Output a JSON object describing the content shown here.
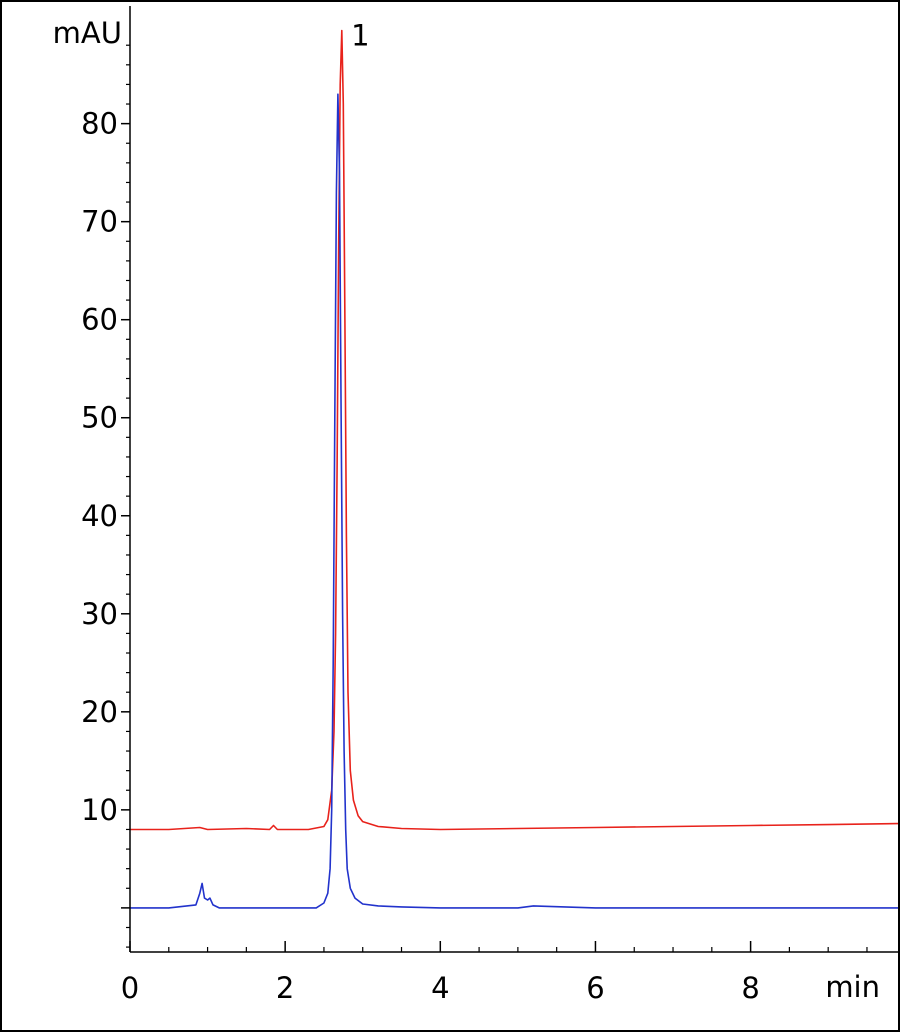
{
  "chart_data": {
    "type": "line",
    "title": "",
    "xlabel": "min",
    "ylabel": "mAU",
    "xlim": [
      0,
      9.9
    ],
    "ylim": [
      -4.5,
      92
    ],
    "grid": false,
    "x_ticks": [
      0,
      2,
      4,
      6,
      8
    ],
    "x_tick_labels": [
      "0",
      "2",
      "4",
      "6",
      "8"
    ],
    "y_ticks": [
      10,
      20,
      30,
      40,
      50,
      60,
      70,
      80
    ],
    "y_tick_labels": [
      "10",
      "20",
      "30",
      "40",
      "50",
      "60",
      "70",
      "80"
    ],
    "y_unlabeled_ticks": [
      0
    ],
    "annotations": [
      {
        "text": "1",
        "x": 2.85,
        "y": 89
      }
    ],
    "series": [
      {
        "color": "#e8221b",
        "x": [
          0,
          0.5,
          0.9,
          1.0,
          1.5,
          1.8,
          1.85,
          1.9,
          2.3,
          2.5,
          2.55,
          2.6,
          2.63,
          2.65,
          2.67,
          2.69,
          2.71,
          2.73,
          2.75,
          2.77,
          2.79,
          2.81,
          2.84,
          2.88,
          2.94,
          3.0,
          3.2,
          3.5,
          4.0,
          5.0,
          6.0,
          7.0,
          8.0,
          9.0,
          9.9
        ],
        "y": [
          8.0,
          8.0,
          8.2,
          8.0,
          8.1,
          8.0,
          8.4,
          8.0,
          8.0,
          8.3,
          9.0,
          12.0,
          18.0,
          28.0,
          45.0,
          68.0,
          84.0,
          89.5,
          82.0,
          60.0,
          38.0,
          22.0,
          14.0,
          11.0,
          9.4,
          8.8,
          8.3,
          8.1,
          8.0,
          8.1,
          8.2,
          8.3,
          8.4,
          8.5,
          8.6
        ]
      },
      {
        "color": "#2233cc",
        "x": [
          0,
          0.5,
          0.85,
          0.9,
          0.93,
          0.96,
          1.0,
          1.03,
          1.07,
          1.15,
          1.5,
          2.0,
          2.4,
          2.5,
          2.55,
          2.58,
          2.6,
          2.62,
          2.64,
          2.66,
          2.68,
          2.7,
          2.72,
          2.74,
          2.76,
          2.78,
          2.8,
          2.84,
          2.9,
          3.0,
          3.2,
          3.5,
          4.0,
          5.0,
          5.2,
          6.0,
          7.0,
          8.0,
          9.0,
          9.9
        ],
        "y": [
          0.0,
          0.0,
          0.3,
          1.5,
          2.5,
          1.0,
          0.8,
          1.0,
          0.3,
          0.0,
          0.0,
          0.0,
          0.0,
          0.5,
          1.5,
          4.0,
          10.0,
          25.0,
          50.0,
          73.0,
          83.0,
          75.0,
          52.0,
          30.0,
          16.0,
          8.0,
          4.0,
          2.0,
          1.0,
          0.4,
          0.2,
          0.1,
          0.0,
          0.0,
          0.2,
          0.0,
          0.0,
          0.0,
          0.0,
          0.0
        ]
      }
    ]
  }
}
